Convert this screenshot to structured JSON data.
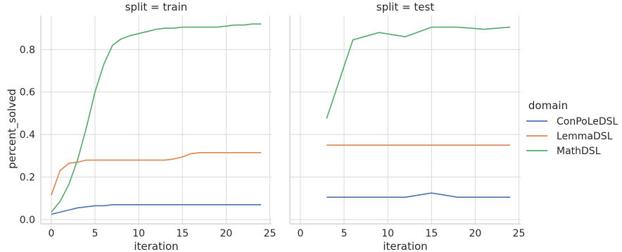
{
  "chart_data": {
    "type": "line",
    "ylabel": "percent_solved",
    "xlabel": "iteration",
    "x_ticks": [
      0,
      5,
      10,
      15,
      20,
      25
    ],
    "y_ticks": [
      "0.0",
      "0.2",
      "0.4",
      "0.6",
      "0.8"
    ],
    "xlim": [
      -1.2,
      25.2
    ],
    "ylim": [
      -0.02,
      0.96
    ],
    "grid": true,
    "legend": {
      "title": "domain",
      "placement": "right"
    },
    "colors": {
      "ConPoLeDSL": "#4c72b0",
      "LemmaDSL": "#dd8452",
      "MathDSL": "#55a868"
    },
    "panels": [
      {
        "title": "split = train",
        "series": [
          {
            "name": "ConPoLeDSL",
            "x": [
              0,
              1,
              2,
              3,
              4,
              5,
              6,
              7,
              8,
              9,
              10,
              11,
              12,
              13,
              14,
              15,
              16,
              17,
              18,
              19,
              20,
              21,
              22,
              23,
              24
            ],
            "y": [
              0.025,
              0.035,
              0.045,
              0.055,
              0.06,
              0.065,
              0.065,
              0.07,
              0.07,
              0.07,
              0.07,
              0.07,
              0.07,
              0.07,
              0.07,
              0.07,
              0.07,
              0.07,
              0.07,
              0.07,
              0.07,
              0.07,
              0.07,
              0.07,
              0.07
            ]
          },
          {
            "name": "LemmaDSL",
            "x": [
              0,
              1,
              2,
              3,
              4,
              5,
              6,
              7,
              8,
              9,
              10,
              11,
              12,
              13,
              14,
              15,
              16,
              17,
              18,
              19,
              20,
              21,
              22,
              23,
              24
            ],
            "y": [
              0.115,
              0.23,
              0.265,
              0.27,
              0.28,
              0.28,
              0.28,
              0.28,
              0.28,
              0.28,
              0.28,
              0.28,
              0.28,
              0.28,
              0.285,
              0.295,
              0.31,
              0.315,
              0.315,
              0.315,
              0.315,
              0.315,
              0.315,
              0.315,
              0.315
            ]
          },
          {
            "name": "MathDSL",
            "x": [
              0,
              1,
              2,
              3,
              4,
              5,
              6,
              7,
              8,
              9,
              10,
              11,
              12,
              13,
              14,
              15,
              16,
              17,
              18,
              19,
              20,
              21,
              22,
              23,
              24
            ],
            "y": [
              0.035,
              0.085,
              0.165,
              0.28,
              0.43,
              0.6,
              0.73,
              0.82,
              0.85,
              0.865,
              0.875,
              0.885,
              0.895,
              0.9,
              0.9,
              0.905,
              0.905,
              0.905,
              0.905,
              0.905,
              0.91,
              0.915,
              0.915,
              0.92,
              0.92
            ]
          }
        ]
      },
      {
        "title": "split = test",
        "series": [
          {
            "name": "ConPoLeDSL",
            "x": [
              3,
              6,
              9,
              12,
              15,
              18,
              21,
              24
            ],
            "y": [
              0.105,
              0.105,
              0.105,
              0.105,
              0.125,
              0.105,
              0.105,
              0.105
            ]
          },
          {
            "name": "LemmaDSL",
            "x": [
              3,
              6,
              9,
              12,
              15,
              18,
              21,
              24
            ],
            "y": [
              0.35,
              0.35,
              0.35,
              0.35,
              0.35,
              0.35,
              0.35,
              0.35
            ]
          },
          {
            "name": "MathDSL",
            "x": [
              3,
              6,
              9,
              12,
              15,
              18,
              21,
              24
            ],
            "y": [
              0.475,
              0.845,
              0.88,
              0.86,
              0.905,
              0.905,
              0.895,
              0.905
            ]
          }
        ]
      }
    ]
  }
}
